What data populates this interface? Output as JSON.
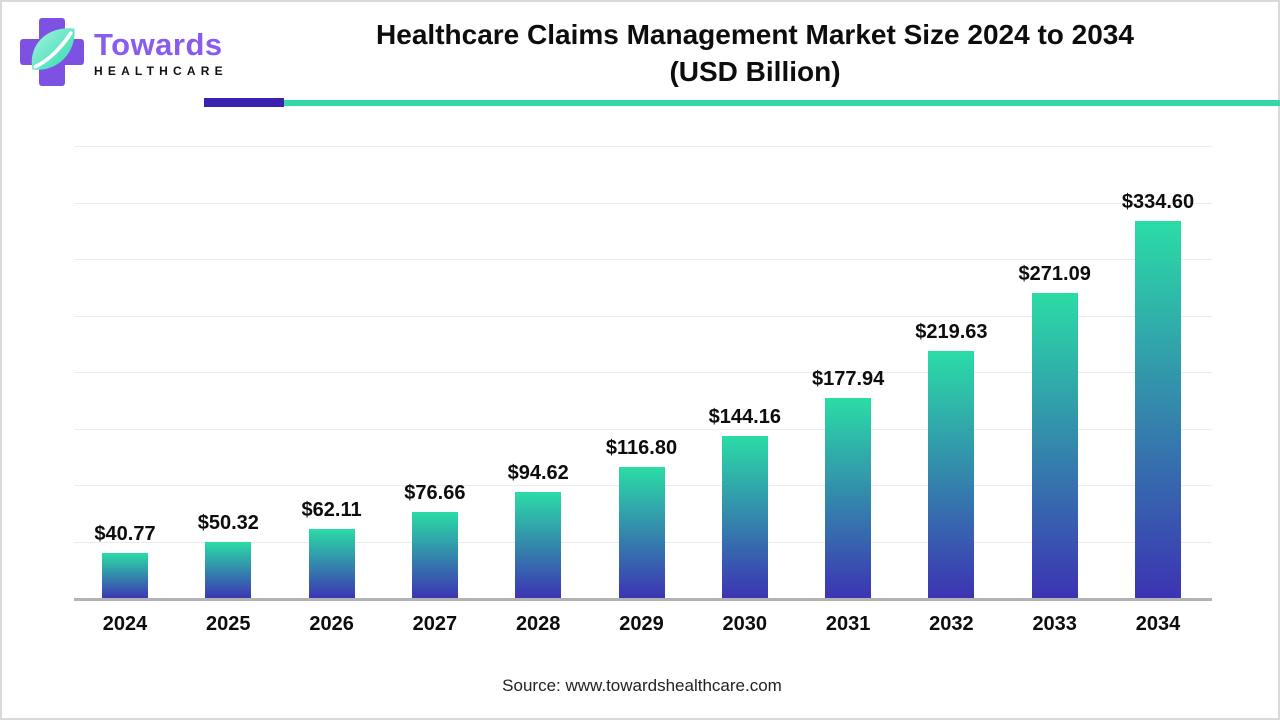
{
  "page": {
    "background": "#ffffff",
    "border_color": "#d9d9d9"
  },
  "header": {
    "logo": {
      "brand_name": "Towards",
      "brand_subtitle": "HEALTHCARE",
      "cross_color": "#7D52E3",
      "brand_name_color": "#8A5BEF",
      "leaf_gradient_start": "#A8F5DE",
      "leaf_gradient_end": "#2FD9AF"
    },
    "title_line1": "Healthcare Claims Management Market Size 2024 to 2034",
    "title_line2": "(USD Billion)",
    "underline_purple_color": "#3A22AE",
    "underline_teal_color": "#35D7A7"
  },
  "chart_data": {
    "type": "bar",
    "title": "Healthcare Claims Management Market Size 2024 to 2034 (USD Billion)",
    "categories": [
      "2024",
      "2025",
      "2026",
      "2027",
      "2028",
      "2029",
      "2030",
      "2031",
      "2032",
      "2033",
      "2034"
    ],
    "values": [
      40.77,
      50.32,
      62.11,
      76.66,
      94.62,
      116.8,
      144.16,
      177.94,
      219.63,
      271.09,
      334.6
    ],
    "labels": [
      "$40.77",
      "$50.32",
      "$62.11",
      "$76.66",
      "$94.62",
      "$116.80",
      "$144.16",
      "$177.94",
      "$219.63",
      "$271.09",
      "$334.60"
    ],
    "xlabel": "",
    "ylabel": "",
    "ylim": [
      0,
      400
    ],
    "gridline_step": 50,
    "grid": true,
    "legend": false,
    "y_axis_tick_labels_visible": false,
    "bar_gradient_top": "#2BDCA6",
    "bar_gradient_bottom": "#3C33B3",
    "gridline_color": "#ececec",
    "axis_color": "#b3b3b3"
  },
  "footer": {
    "source_text": "Source: www.towardshealthcare.com"
  }
}
